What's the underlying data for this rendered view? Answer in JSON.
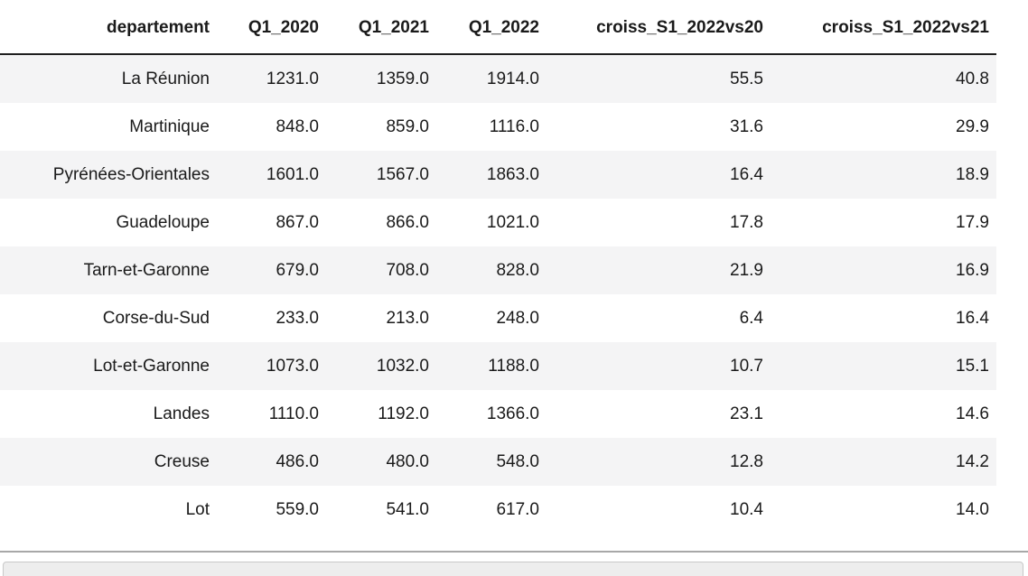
{
  "chart_data": {
    "type": "table",
    "title": "",
    "columns": [
      "departement",
      "Q1_2020",
      "Q1_2021",
      "Q1_2022",
      "croiss_S1_2022vs20",
      "croiss_S1_2022vs21"
    ],
    "rows": [
      [
        "La Réunion",
        "1231.0",
        "1359.0",
        "1914.0",
        "55.5",
        "40.8"
      ],
      [
        "Martinique",
        "848.0",
        "859.0",
        "1116.0",
        "31.6",
        "29.9"
      ],
      [
        "Pyrénées-Orientales",
        "1601.0",
        "1567.0",
        "1863.0",
        "16.4",
        "18.9"
      ],
      [
        "Guadeloupe",
        "867.0",
        "866.0",
        "1021.0",
        "17.8",
        "17.9"
      ],
      [
        "Tarn-et-Garonne",
        "679.0",
        "708.0",
        "828.0",
        "21.9",
        "16.9"
      ],
      [
        "Corse-du-Sud",
        "233.0",
        "213.0",
        "248.0",
        "6.4",
        "16.4"
      ],
      [
        "Lot-et-Garonne",
        "1073.0",
        "1032.0",
        "1188.0",
        "10.7",
        "15.1"
      ],
      [
        "Landes",
        "1110.0",
        "1192.0",
        "1366.0",
        "23.1",
        "14.6"
      ],
      [
        "Creuse",
        "486.0",
        "480.0",
        "548.0",
        "12.8",
        "14.2"
      ],
      [
        "Lot",
        "559.0",
        "541.0",
        "617.0",
        "10.4",
        "14.0"
      ]
    ],
    "layout": {
      "alignment": "right",
      "striped_rows": true,
      "header_bold": true
    }
  },
  "colors": {
    "stripe": "#f4f4f5",
    "header_border": "#1f1f1f",
    "divider": "#a8a8a8",
    "next_cell_bg": "#ededed",
    "next_cell_border": "#c8c8c8"
  }
}
